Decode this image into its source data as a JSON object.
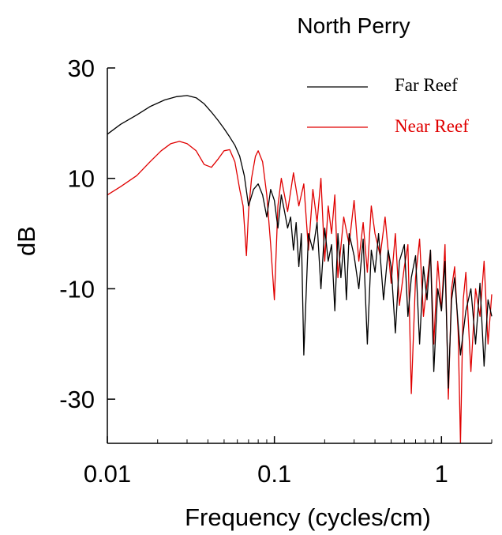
{
  "chart_data": {
    "type": "line",
    "title": "North Perry",
    "xlabel": "Frequency (cycles/cm)",
    "ylabel": "dB",
    "x_scale": "log",
    "xlim": [
      0.01,
      2
    ],
    "ylim": [
      -38,
      30
    ],
    "x_ticks": [
      {
        "value": 0.01,
        "label": "0.01"
      },
      {
        "value": 0.1,
        "label": "0.1"
      },
      {
        "value": 1,
        "label": "1"
      }
    ],
    "y_ticks": [
      {
        "value": 30,
        "label": "30"
      },
      {
        "value": 10,
        "label": "10"
      },
      {
        "value": -10,
        "label": "-10"
      },
      {
        "value": -30,
        "label": "-30"
      }
    ],
    "grid": false,
    "legend": "top-right",
    "series": [
      {
        "name": "Far Reef",
        "color": "#000000",
        "x": [
          0.01,
          0.012,
          0.015,
          0.018,
          0.022,
          0.026,
          0.03,
          0.034,
          0.038,
          0.042,
          0.046,
          0.05,
          0.054,
          0.058,
          0.062,
          0.066,
          0.07,
          0.075,
          0.08,
          0.085,
          0.09,
          0.095,
          0.1,
          0.105,
          0.11,
          0.115,
          0.12,
          0.125,
          0.13,
          0.135,
          0.14,
          0.145,
          0.15,
          0.16,
          0.17,
          0.18,
          0.19,
          0.2,
          0.21,
          0.22,
          0.23,
          0.24,
          0.25,
          0.26,
          0.27,
          0.28,
          0.3,
          0.32,
          0.34,
          0.36,
          0.38,
          0.4,
          0.42,
          0.45,
          0.48,
          0.5,
          0.53,
          0.56,
          0.6,
          0.63,
          0.66,
          0.7,
          0.74,
          0.78,
          0.82,
          0.86,
          0.9,
          0.95,
          1.0,
          1.05,
          1.1,
          1.15,
          1.2,
          1.3,
          1.4,
          1.5,
          1.6,
          1.7,
          1.8,
          1.9,
          2.0
        ],
        "values": [
          18,
          19.8,
          21.5,
          23,
          24.2,
          24.8,
          25,
          24.6,
          23.5,
          22,
          20.5,
          19,
          17.5,
          16,
          14,
          10.5,
          5,
          8,
          9,
          7,
          3,
          8,
          6,
          1,
          7,
          4,
          1,
          3,
          -3,
          2,
          -6,
          0,
          -22,
          0,
          -3,
          2,
          -10,
          1,
          -5,
          -2,
          -14,
          0,
          -8,
          -2,
          -12,
          0,
          -4,
          -10,
          -1,
          -20,
          -3,
          -7,
          0,
          -12,
          -3,
          -6,
          -18,
          -5,
          -2,
          -15,
          -8,
          -4,
          -20,
          -6,
          -12,
          -3,
          -25,
          -10,
          -14,
          -5,
          -28,
          -12,
          -8,
          -22,
          -14,
          -10,
          -20,
          -9,
          -24,
          -12,
          -15
        ]
      },
      {
        "name": "Near Reef",
        "color": "#e00000",
        "x": [
          0.01,
          0.012,
          0.015,
          0.018,
          0.021,
          0.024,
          0.027,
          0.03,
          0.034,
          0.038,
          0.042,
          0.046,
          0.05,
          0.054,
          0.058,
          0.062,
          0.065,
          0.068,
          0.07,
          0.073,
          0.077,
          0.08,
          0.085,
          0.09,
          0.095,
          0.1,
          0.105,
          0.11,
          0.12,
          0.13,
          0.14,
          0.15,
          0.16,
          0.17,
          0.18,
          0.19,
          0.2,
          0.21,
          0.22,
          0.23,
          0.24,
          0.26,
          0.28,
          0.3,
          0.32,
          0.34,
          0.36,
          0.38,
          0.4,
          0.43,
          0.46,
          0.5,
          0.53,
          0.56,
          0.6,
          0.63,
          0.66,
          0.7,
          0.74,
          0.78,
          0.82,
          0.86,
          0.9,
          0.95,
          1.0,
          1.05,
          1.1,
          1.15,
          1.2,
          1.26,
          1.3,
          1.35,
          1.4,
          1.5,
          1.6,
          1.7,
          1.8,
          1.9,
          2.0
        ],
        "values": [
          7,
          8.5,
          10.5,
          13,
          15,
          16.3,
          16.7,
          16.3,
          15,
          12.5,
          12,
          13.5,
          15,
          15.2,
          13,
          8,
          5,
          -4,
          4,
          10,
          14,
          15,
          13,
          7,
          -2,
          -12,
          5,
          10,
          4,
          11,
          5,
          9,
          -3,
          8,
          2,
          10,
          -5,
          5,
          0,
          7,
          -8,
          3,
          -2,
          6,
          -5,
          2,
          -7,
          5,
          0,
          -4,
          3,
          -9,
          0,
          -13,
          -6,
          -2,
          -29,
          -8,
          -1,
          -15,
          -9,
          -3,
          -20,
          -5,
          -14,
          -2,
          -30,
          -10,
          -6,
          -18,
          -38,
          -12,
          -7,
          -25,
          -10,
          -15,
          -5,
          -20,
          -11
        ]
      }
    ]
  }
}
